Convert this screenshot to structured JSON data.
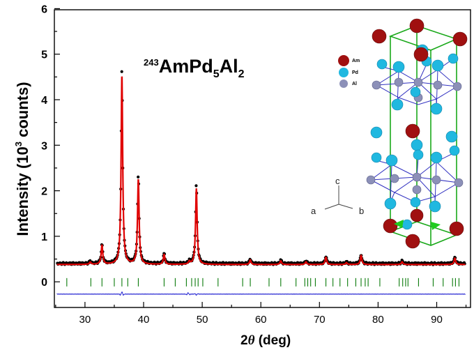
{
  "chart_data": {
    "type": "line",
    "compound": {
      "mass_number": "243",
      "formula_main": "AmPd",
      "sub1": "5",
      "formula_mid": "Al",
      "sub2": "2"
    },
    "xlabel": {
      "symbol": "2",
      "var": "θ",
      "unit": " (deg)"
    },
    "ylabel": {
      "main": "Intensity (10",
      "sup": "3",
      "end": " counts)"
    },
    "xlim": [
      25,
      95
    ],
    "ylim": [
      -0.45,
      6
    ],
    "xticks": [
      30,
      40,
      50,
      60,
      70,
      80,
      90
    ],
    "yticks": [
      0,
      1,
      2,
      3,
      4,
      5,
      6
    ],
    "background": 0.38,
    "peaks": [
      {
        "x": 30.9,
        "h": 0.05
      },
      {
        "x": 32.9,
        "h": 0.42
      },
      {
        "x": 36.3,
        "h": 4.17
      },
      {
        "x": 39.1,
        "h": 1.87
      },
      {
        "x": 43.5,
        "h": 0.22
      },
      {
        "x": 47.8,
        "h": 0.06
      },
      {
        "x": 49.0,
        "h": 1.67
      },
      {
        "x": 58.2,
        "h": 0.1
      },
      {
        "x": 63.4,
        "h": 0.08
      },
      {
        "x": 67.7,
        "h": 0.06
      },
      {
        "x": 71.1,
        "h": 0.16
      },
      {
        "x": 74.6,
        "h": 0.04
      },
      {
        "x": 77.1,
        "h": 0.2
      },
      {
        "x": 84.1,
        "h": 0.06
      },
      {
        "x": 93.1,
        "h": 0.14
      }
    ],
    "bragg_ticks": [
      26.9,
      31.0,
      32.9,
      35.0,
      36.3,
      37.3,
      39.1,
      43.5,
      45.4,
      47.3,
      48.2,
      48.8,
      49.3,
      50.1,
      52.7,
      56.9,
      58.2,
      61.4,
      63.4,
      66.0,
      67.5,
      68.0,
      68.5,
      69.3,
      71.1,
      72.3,
      73.5,
      74.8,
      76.2,
      77.1,
      77.8,
      78.3,
      80.3,
      83.6,
      84.2,
      84.7,
      85.1,
      86.9,
      89.4,
      91.1,
      92.7,
      93.2,
      93.8
    ],
    "bragg_level": -0.01,
    "difference_level": -0.27,
    "difference_features": [
      {
        "x": 36.3,
        "amp": 0.05
      },
      {
        "x": 47.6,
        "amp": 0.03
      },
      {
        "x": 49.0,
        "amp": -0.02
      }
    ],
    "series": [
      {
        "role": "observed",
        "color": "#000000"
      },
      {
        "role": "calculated",
        "color": "#e00000"
      },
      {
        "role": "bragg_positions",
        "color": "#0a7a0a"
      },
      {
        "role": "difference",
        "color": "#1c1cd0"
      }
    ],
    "grid": false
  },
  "inset": {
    "legend": [
      {
        "label": "Am",
        "color": "#a01010"
      },
      {
        "label": "Pd",
        "color": "#20b8e0"
      },
      {
        "label": "Al",
        "color": "#8c90b8"
      }
    ],
    "axes_labels": {
      "c": "c",
      "a": "a",
      "b": "b"
    }
  }
}
